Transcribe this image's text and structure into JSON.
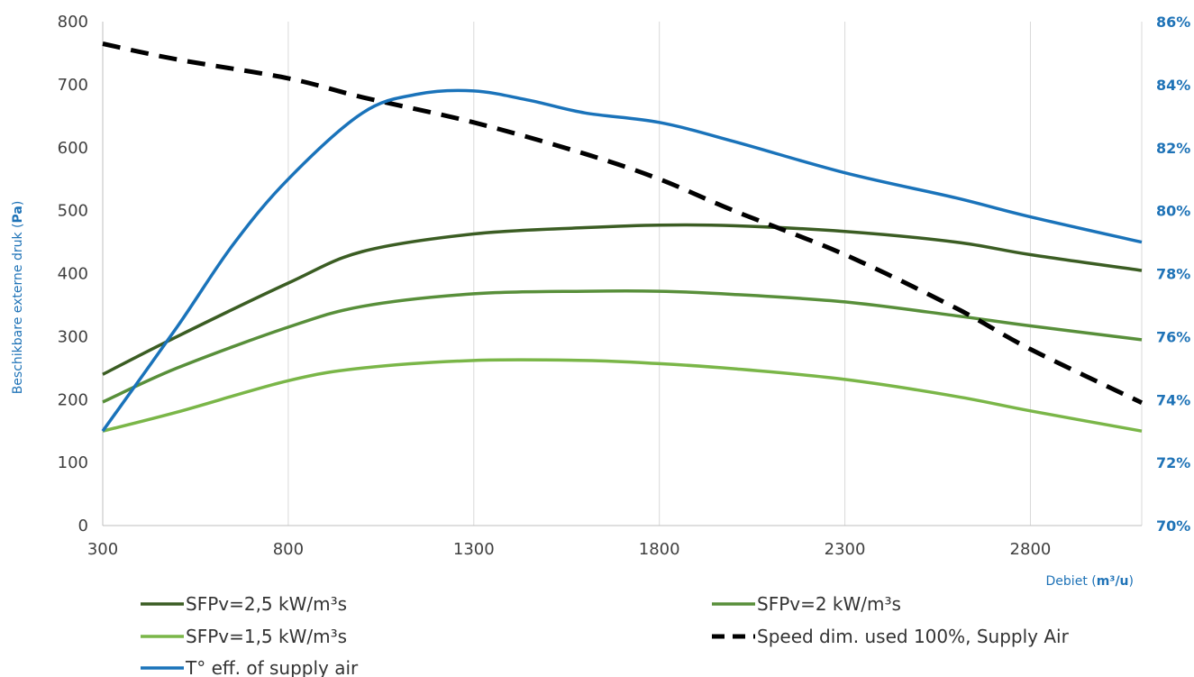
{
  "chart_data": {
    "type": "line",
    "xlabel_prefix": "Debiet (",
    "xlabel_unit": "m³/u",
    "xlabel_suffix": ")",
    "ylabel_prefix": "Beschikbare externe druk (",
    "ylabel_unit": "Pa",
    "ylabel_suffix": ")",
    "xlim": [
      300,
      3100
    ],
    "ylim": [
      0,
      800
    ],
    "y2lim": [
      70,
      86
    ],
    "x_ticks": [
      "300",
      "800",
      "1300",
      "1800",
      "2300",
      "2800"
    ],
    "y_ticks": [
      "0",
      "100",
      "200",
      "300",
      "400",
      "500",
      "600",
      "700",
      "800"
    ],
    "y2_ticks": [
      "70%",
      "72%",
      "74%",
      "76%",
      "78%",
      "80%",
      "82%",
      "84%",
      "86%"
    ],
    "grid": "vertical",
    "legend_position": "bottom",
    "series": [
      {
        "name": "SFPv=2,5 kW/m³s",
        "axis": "left",
        "color": "#3b5d23",
        "dash": "solid",
        "x": [
          300,
          500,
          800,
          1000,
          1300,
          1600,
          1800,
          2000,
          2300,
          2600,
          2800,
          3100
        ],
        "y": [
          240,
          300,
          385,
          435,
          463,
          473,
          477,
          476,
          467,
          450,
          430,
          405
        ]
      },
      {
        "name": "SFPv=2 kW/m³s",
        "axis": "left",
        "color": "#588f3a",
        "dash": "solid",
        "x": [
          300,
          500,
          800,
          1000,
          1300,
          1600,
          1800,
          2000,
          2300,
          2600,
          2800,
          3100
        ],
        "y": [
          196,
          250,
          315,
          348,
          368,
          372,
          372,
          367,
          355,
          333,
          317,
          295
        ]
      },
      {
        "name": "SFPv=1,5 kW/m³s",
        "axis": "left",
        "color": "#7ab648",
        "dash": "solid",
        "x": [
          300,
          500,
          800,
          1000,
          1300,
          1600,
          1800,
          2000,
          2300,
          2600,
          2800,
          3100
        ],
        "y": [
          150,
          180,
          230,
          250,
          262,
          262,
          257,
          249,
          232,
          205,
          182,
          150
        ]
      },
      {
        "name": "Speed dim. used 100%, Supply Air",
        "axis": "right",
        "color": "#000000",
        "dash": "dashed",
        "x": [
          300,
          500,
          800,
          1000,
          1300,
          1600,
          1800,
          2000,
          2300,
          2600,
          2800,
          3100
        ],
        "y": [
          85.3,
          84.8,
          84.2,
          83.6,
          82.8,
          81.8,
          81.0,
          80.0,
          78.6,
          76.9,
          75.6,
          73.9
        ]
      },
      {
        "name": "T° eff. of supply air",
        "axis": "right",
        "color": "#1a73ba",
        "dash": "solid",
        "x": [
          300,
          500,
          650,
          800,
          1000,
          1150,
          1300,
          1450,
          1600,
          1800,
          2000,
          2300,
          2600,
          2800,
          3100
        ],
        "y": [
          73.0,
          76.3,
          78.9,
          81.0,
          83.1,
          83.7,
          83.8,
          83.5,
          83.1,
          82.8,
          82.2,
          81.2,
          80.4,
          79.8,
          79.0
        ]
      }
    ]
  }
}
